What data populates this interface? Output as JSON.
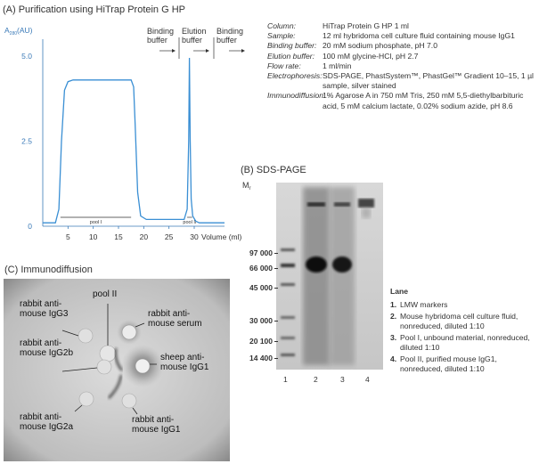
{
  "panel_a": {
    "title": "(A) Purification using HiTrap Protein G HP",
    "y_axis_label": "A",
    "y_axis_subscript": "280",
    "y_axis_unit": "(AU)",
    "x_axis_label": "Volume (ml)",
    "buffer_labels": [
      "Binding buffer",
      "Elution buffer",
      "Binding buffer"
    ],
    "pool_labels": [
      "pool I",
      "pool II"
    ]
  },
  "chart_data": {
    "type": "line",
    "title": "",
    "xlabel": "Volume (ml)",
    "ylabel": "A280 (AU)",
    "xlim": [
      0,
      36
    ],
    "ylim": [
      0,
      5.5
    ],
    "xticks": [
      5,
      10,
      15,
      20,
      25,
      30
    ],
    "yticks": [
      0,
      2.5,
      5.0
    ],
    "ytick_labels": [
      "0",
      "2.5",
      "5.0"
    ],
    "series": [
      {
        "x": [
          0,
          2.5,
          3.2,
          3.7,
          4.3,
          5.0,
          6.0,
          10.0,
          15.0,
          17.5,
          18.0,
          18.3,
          18.8,
          19.4,
          20.5,
          26.0,
          28.0,
          28.6,
          28.9,
          29.05,
          29.2,
          29.4,
          29.7,
          30.3,
          31.0,
          33.0,
          36.0
        ],
        "y": [
          0.1,
          0.1,
          0.5,
          2.5,
          4.0,
          4.25,
          4.3,
          4.3,
          4.3,
          4.3,
          4.1,
          3.0,
          1.0,
          0.3,
          0.2,
          0.2,
          0.2,
          0.5,
          2.5,
          4.95,
          2.5,
          0.8,
          0.3,
          0.15,
          0.1,
          0.1,
          0.1
        ]
      }
    ],
    "pool_ranges": [
      [
        3.5,
        17.5
      ],
      [
        28.6,
        29.6
      ]
    ]
  },
  "conditions": [
    {
      "key": "Column:",
      "value": "HiTrap Protein G HP 1 ml"
    },
    {
      "key": "Sample:",
      "value": "12 ml hybridoma cell culture fluid containing mouse IgG1"
    },
    {
      "key": "Binding buffer:",
      "value": "20 mM sodium phosphate, pH 7.0"
    },
    {
      "key": "Elution buffer:",
      "value": "100 mM glycine-HCl, pH 2.7"
    },
    {
      "key": "Flow rate:",
      "value": "1 ml/min"
    },
    {
      "key": "Electrophoresis:",
      "value": "SDS-PAGE, PhastSystem™, PhastGel™ Gradient 10–15, 1 µl sample, silver stained"
    },
    {
      "key": "Immunodiffusion:",
      "value": "1% Agarose A in 750 mM Tris, 250 mM 5,5-diethylbarbituric acid, 5 mM calcium lactate, 0.02% sodium azide, pH 8.6"
    }
  ],
  "panel_b": {
    "title": "(B) SDS-PAGE",
    "mr_label": "Mr",
    "markers": [
      "97 000",
      "66 000",
      "45 000",
      "30 000",
      "20 100",
      "14 400"
    ],
    "lane_numbers": [
      "1",
      "2",
      "3",
      "4"
    ],
    "legend_title": "Lane",
    "lanes": [
      {
        "num": "1.",
        "text": "LMW markers"
      },
      {
        "num": "2.",
        "text": "Mouse hybridoma cell culture fluid, nonreduced, diluted 1:10"
      },
      {
        "num": "3.",
        "text": "Pool I, unbound material, nonreduced, diluted 1:10"
      },
      {
        "num": "4.",
        "text": "Pool II, purified mouse IgG1, nonreduced, diluted 1:10"
      }
    ]
  },
  "panel_c": {
    "title": "(C) Immunodiffusion",
    "labels": {
      "pool_ii": "pool II",
      "rabbit_igg3": "rabbit anti- mouse IgG3",
      "rabbit_serum": "rabbit anti- mouse serum",
      "rabbit_igg2b": "rabbit anti- mouse IgG2b",
      "sheep_igg1": "sheep anti- mouse IgG1",
      "rabbit_igg2a": "rabbit anti- mouse IgG2a",
      "rabbit_igg1": "rabbit anti- mouse IgG1"
    }
  }
}
